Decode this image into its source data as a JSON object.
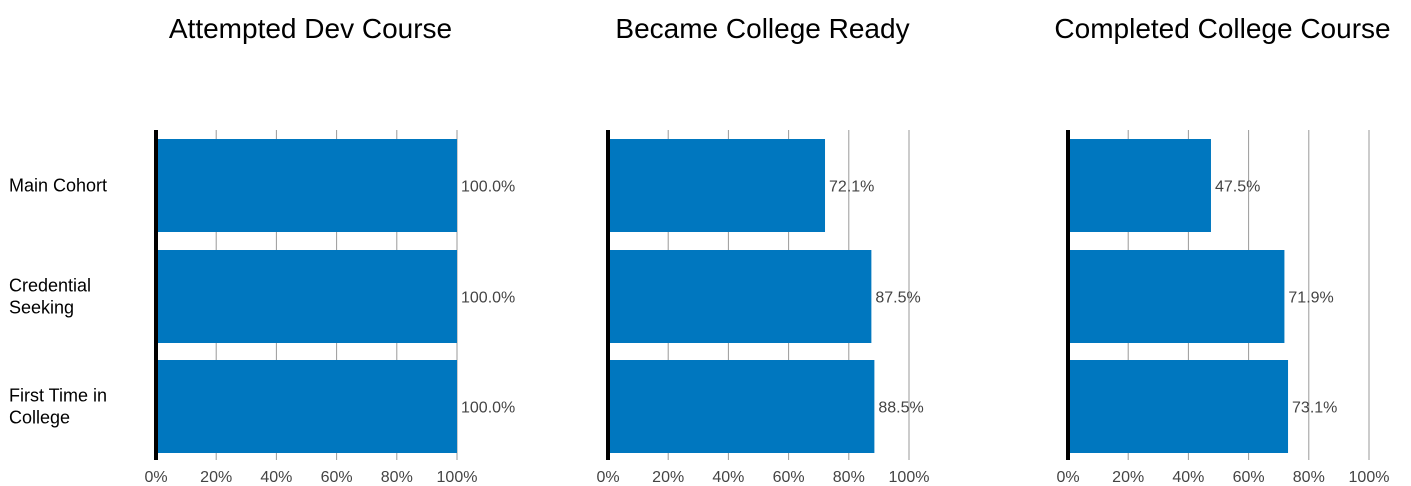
{
  "chart_data": {
    "type": "bar",
    "orientation": "horizontal",
    "categories": [
      "Main Cohort",
      "Credential Seeking",
      "First Time in College"
    ],
    "xlim": [
      0,
      100
    ],
    "ticks": [
      "0%",
      "20%",
      "40%",
      "60%",
      "80%",
      "100%"
    ],
    "grid": true,
    "bar_color": "#0077BF",
    "panels": [
      {
        "title": "Attempted Dev Course",
        "values": [
          100.0,
          100.0,
          100.0
        ],
        "labels": [
          "100.0%",
          "100.0%",
          "100.0%"
        ]
      },
      {
        "title": "Became College Ready",
        "values": [
          72.1,
          87.5,
          88.5
        ],
        "labels": [
          "72.1%",
          "87.5%",
          "88.5%"
        ]
      },
      {
        "title": "Completed College Course",
        "values": [
          47.5,
          71.9,
          73.1
        ],
        "labels": [
          "47.5%",
          "71.9%",
          "73.1%"
        ]
      }
    ]
  }
}
